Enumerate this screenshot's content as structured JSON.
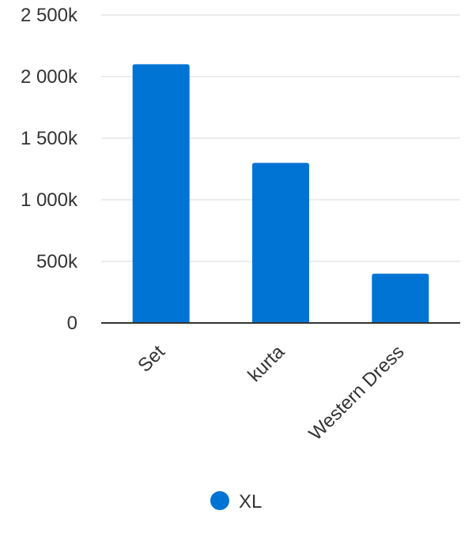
{
  "chart_data": {
    "type": "bar",
    "categories": [
      "Set",
      "kurta",
      "Western Dress"
    ],
    "series": [
      {
        "name": "XL",
        "color": "#0074d4",
        "values": [
          2100000,
          1300000,
          400000
        ]
      }
    ],
    "yticks": [
      0,
      500000,
      1000000,
      1500000,
      2000000,
      2500000
    ],
    "ytick_labels": [
      "0",
      "500k",
      "1 000k",
      "1 500k",
      "2 000k",
      "2 500k"
    ],
    "ylim": [
      0,
      2500000
    ],
    "grid": true,
    "legend_position": "bottom"
  }
}
